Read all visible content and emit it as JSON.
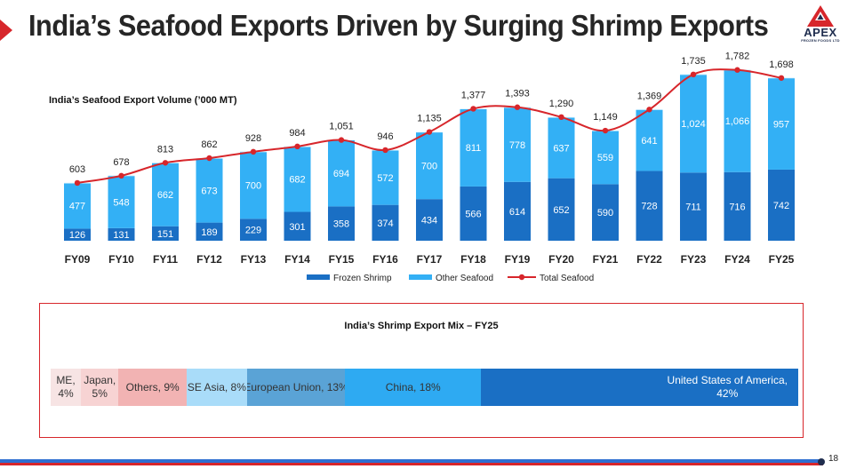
{
  "header": {
    "title": "India’s Seafood Exports Driven by Surging Shrimp Exports",
    "logo": {
      "name": "APEX",
      "sub": "FROZEN FOODS LTD"
    },
    "accent_color": "#d7262b"
  },
  "chart_title": "India’s Seafood Export Volume (’000 MT)",
  "chart_data": {
    "type": "bar",
    "title": "India’s Seafood Export Volume (’000 MT)",
    "stacked": true,
    "categories": [
      "FY09",
      "FY10",
      "FY11",
      "FY12",
      "FY13",
      "FY14",
      "FY15",
      "FY16",
      "FY17",
      "FY18",
      "FY19",
      "FY20",
      "FY21",
      "FY22",
      "FY23",
      "FY24",
      "FY25"
    ],
    "series": [
      {
        "name": "Frozen Shrimp",
        "kind": "bar",
        "color": "#1a6fc4",
        "values": [
          126,
          131,
          151,
          189,
          229,
          301,
          358,
          374,
          434,
          566,
          614,
          652,
          590,
          728,
          711,
          716,
          742
        ],
        "labels": [
          "126",
          "131",
          "151",
          "189",
          "229",
          "301",
          "358",
          "374",
          "434",
          "566",
          "614",
          "652",
          "590",
          "728",
          "711",
          "716",
          "742"
        ]
      },
      {
        "name": "Other Seafood",
        "kind": "bar",
        "color": "#33b0f5",
        "values": [
          477,
          548,
          662,
          673,
          700,
          682,
          694,
          572,
          700,
          811,
          778,
          637,
          559,
          641,
          1024,
          1066,
          957
        ],
        "labels": [
          "477",
          "548",
          "662",
          "673",
          "700",
          "682",
          "694",
          "572",
          "700",
          "811",
          "778",
          "637",
          "559",
          "641",
          "1,024",
          "1,066",
          "957"
        ]
      },
      {
        "name": "Total Seafood",
        "kind": "line",
        "color": "#d7262b",
        "values": [
          603,
          678,
          813,
          862,
          928,
          984,
          1051,
          946,
          1135,
          1377,
          1393,
          1290,
          1149,
          1369,
          1735,
          1782,
          1698
        ],
        "labels": [
          "603",
          "678",
          "813",
          "862",
          "928",
          "984",
          "1,051",
          "946",
          "1,135",
          "1,377",
          "1,393",
          "1,290",
          "1,149",
          "1,369",
          "1,735",
          "1,782",
          "1,698"
        ]
      }
    ],
    "ylim": [
      0,
      1900
    ],
    "grid": false,
    "legend": "bottom-center"
  },
  "mix": {
    "title": "India’s Shrimp Export Mix – FY25",
    "segments": [
      {
        "name": "ME",
        "pct": 4,
        "label": "ME,\n4%",
        "color": "#f7e4e4",
        "text_color": "#333333"
      },
      {
        "name": "Japan",
        "pct": 5,
        "label": "Japan,\n5%",
        "color": "#f7d3d3",
        "text_color": "#333333"
      },
      {
        "name": "Others",
        "pct": 9,
        "label": "Others, 9%",
        "color": "#f2b3b3",
        "text_color": "#333333"
      },
      {
        "name": "SE Asia",
        "pct": 8,
        "label": "SE Asia, 8%",
        "color": "#a9dcf9",
        "text_color": "#333333"
      },
      {
        "name": "European Union",
        "pct": 13,
        "label": "European Union, 13%",
        "color": "#5aa3d6",
        "text_color": "#333333"
      },
      {
        "name": "China",
        "pct": 18,
        "label": "China, 18%",
        "color": "#2eaaf2",
        "text_color": "#333333"
      },
      {
        "name": "United States of America",
        "pct": 42,
        "label": "United States of America,\n42%",
        "color": "#1a6fc4",
        "text_color": "#ffffff"
      }
    ]
  },
  "page_number": "18"
}
